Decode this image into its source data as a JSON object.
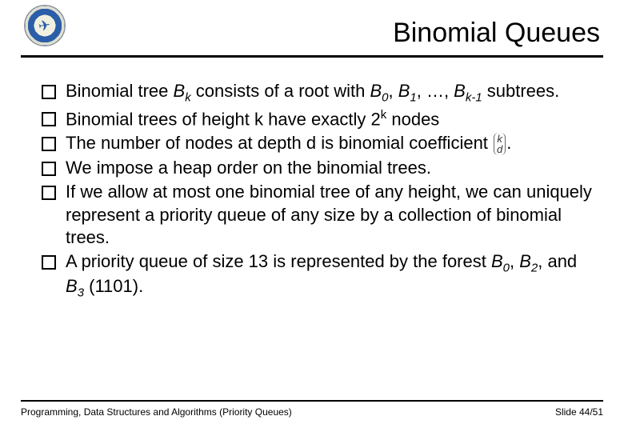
{
  "header": {
    "title": "Binomial Queues"
  },
  "bullets": {
    "b0_pre": "Binomial tree ",
    "b0_bk": "B",
    "b0_sub": "k",
    "b0_mid": " consists of a root with ",
    "b0_b0": "B",
    "b0_b0s": "0",
    "b0_c1": ", ",
    "b0_b1": "B",
    "b0_b1s": "1",
    "b0_c2": ", …, ",
    "b0_bk1": "B",
    "b0_bk1s": "k-1",
    "b0_post": " subtrees.",
    "b1_pre": "Binomial trees of height k have exactly 2",
    "b1_sup": "k",
    "b1_post": " nodes",
    "b2_pre": "The number of nodes at depth d is binomial coefficient ",
    "b2_top": "k",
    "b2_bot": "d",
    "b2_post": ".",
    "b3": "We impose a heap order on the binomial trees.",
    "b4": "If we allow at most one binomial tree of any height, we can uniquely represent a priority queue of any size by a collection of binomial trees.",
    "b5_pre": "A priority queue of size 13 is represented by the forest ",
    "b5_b0": "B",
    "b5_b0s": "0",
    "b5_c1": ", ",
    "b5_b2": "B",
    "b5_b2s": "2",
    "b5_c2": ", and ",
    "b5_b3": "B",
    "b5_b3s": "3",
    "b5_post": " (1101)."
  },
  "footer": {
    "left": "Programming, Data Structures and Algorithms  (Priority Queues)",
    "right": "Slide 44/51"
  }
}
